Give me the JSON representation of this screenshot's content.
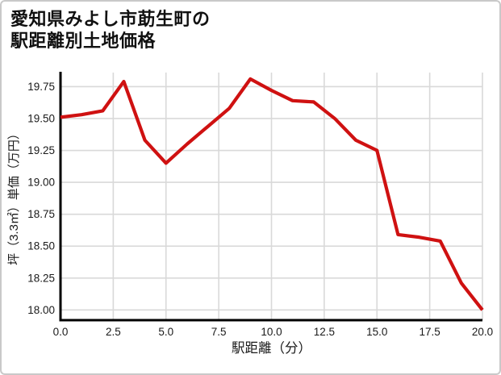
{
  "card": {
    "title_line1": "愛知県みよし市莇生町の",
    "title_line2": "駅距離別土地価格"
  },
  "chart_data": {
    "type": "line",
    "title": "愛知県みよし市莇生町の駅距離別土地価格",
    "xlabel": "駅距離（分）",
    "ylabel": "坪（3.3㎡）単価（万円）",
    "x": [
      0,
      1,
      2,
      3,
      4,
      5,
      6,
      7,
      8,
      9,
      10,
      11,
      12,
      13,
      14,
      15,
      16,
      17,
      18,
      19,
      20
    ],
    "y": [
      19.51,
      19.53,
      19.56,
      19.79,
      19.33,
      19.15,
      19.3,
      19.44,
      19.58,
      19.81,
      19.72,
      19.64,
      19.63,
      19.5,
      19.33,
      19.25,
      18.59,
      18.57,
      18.54,
      18.21,
      18.0
    ],
    "xlim": [
      0,
      20
    ],
    "ylim": [
      17.92,
      19.86
    ],
    "grid": true,
    "legend": "none",
    "xticks": [
      {
        "v": 0,
        "label": "0.0"
      },
      {
        "v": 2.5,
        "label": "2.5"
      },
      {
        "v": 5,
        "label": "5.0"
      },
      {
        "v": 7.5,
        "label": "7.5"
      },
      {
        "v": 10,
        "label": "10.0"
      },
      {
        "v": 12.5,
        "label": "12.5"
      },
      {
        "v": 15,
        "label": "15.0"
      },
      {
        "v": 17.5,
        "label": "17.5"
      },
      {
        "v": 20,
        "label": "20.0"
      }
    ],
    "yticks": [
      {
        "v": 18.0,
        "label": "18.00"
      },
      {
        "v": 18.25,
        "label": "18.25"
      },
      {
        "v": 18.5,
        "label": "18.50"
      },
      {
        "v": 18.75,
        "label": "18.75"
      },
      {
        "v": 19.0,
        "label": "19.00"
      },
      {
        "v": 19.25,
        "label": "19.25"
      },
      {
        "v": 19.5,
        "label": "19.50"
      },
      {
        "v": 19.75,
        "label": "19.75"
      }
    ],
    "colors": {
      "line": "#cf1111",
      "axis": "#000000",
      "grid": "#d9d9d9",
      "text": "#1a1a1a"
    }
  }
}
